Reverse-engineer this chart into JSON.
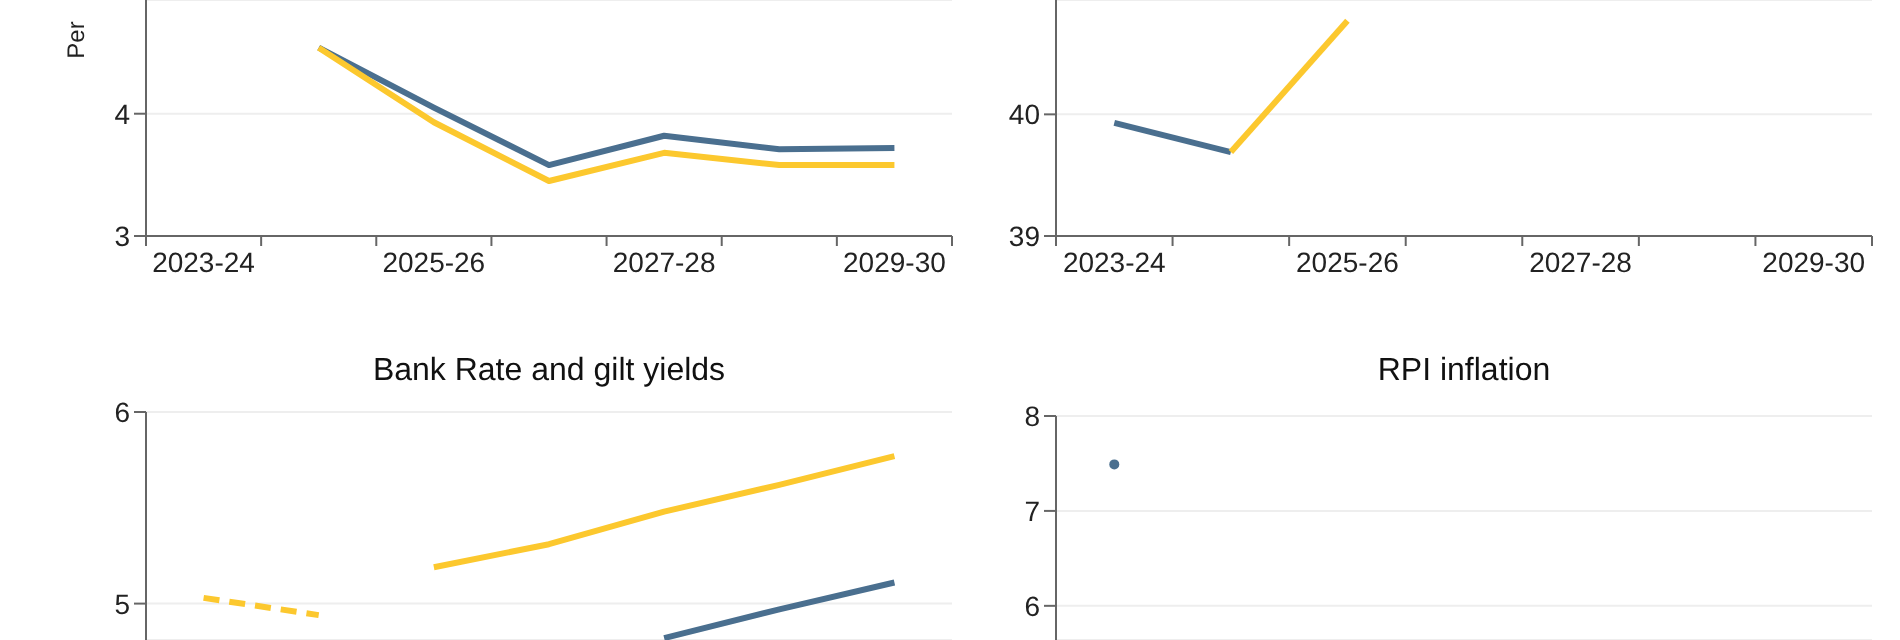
{
  "chart_data": [
    {
      "type": "line",
      "ylabel": "Per",
      "categories": [
        "2023-24",
        null,
        "2025-26",
        null,
        "2027-28",
        null,
        "2029-30"
      ],
      "series": [
        {
          "color": "#4a6f8f",
          "values": [
            null,
            4.54,
            4.05,
            3.58,
            3.82,
            3.71,
            3.72
          ]
        },
        {
          "color": "#fcc82e",
          "values": [
            null,
            4.54,
            3.93,
            3.45,
            3.68,
            3.58,
            3.58
          ]
        }
      ],
      "ylim": [
        3,
        4.93
      ],
      "yticks": [
        3,
        4
      ],
      "grid": "y"
    },
    {
      "type": "line",
      "categories": [
        "2023-24",
        null,
        "2025-26",
        null,
        "2027-28",
        null,
        "2029-30"
      ],
      "series": [
        {
          "color": "#4a6f8f",
          "values": [
            39.93,
            39.69,
            null,
            null,
            null,
            null,
            null
          ]
        },
        {
          "color": "#fcc82e",
          "values": [
            null,
            39.69,
            40.77,
            null,
            null,
            null,
            null
          ]
        }
      ],
      "ylim": [
        39,
        40.94
      ],
      "yticks": [
        39,
        40
      ],
      "grid": "y"
    },
    {
      "type": "line",
      "title": "Bank Rate and gilt yields",
      "categories": [
        null,
        null,
        null,
        null,
        null,
        null,
        null
      ],
      "series": [
        {
          "color": "#fcc82e",
          "line_style": "dashed",
          "values": [
            5.03,
            4.94,
            null,
            null,
            null,
            null,
            null
          ]
        },
        {
          "color": "#fcc82e",
          "values": [
            null,
            null,
            5.19,
            5.31,
            5.48,
            5.62,
            5.77
          ]
        },
        {
          "color": "#4a6f8f",
          "values": [
            null,
            null,
            null,
            null,
            4.82,
            4.97,
            5.11
          ]
        }
      ],
      "ylim": [
        4.81,
        6
      ],
      "yticks": [
        5,
        6
      ],
      "grid": "y",
      "tick_labels": "y"
    },
    {
      "type": "line",
      "title": "RPI inflation",
      "categories": [
        null,
        null,
        null,
        null,
        null,
        null,
        null
      ],
      "series": [
        {
          "color": "#4a6f8f",
          "marker": "circle",
          "values": [
            7.49,
            null,
            null,
            null,
            null,
            null,
            null
          ]
        }
      ],
      "ylim": [
        5.64,
        8
      ],
      "yticks": [
        6,
        7,
        8
      ],
      "grid": "y",
      "tick_labels": "y"
    }
  ]
}
